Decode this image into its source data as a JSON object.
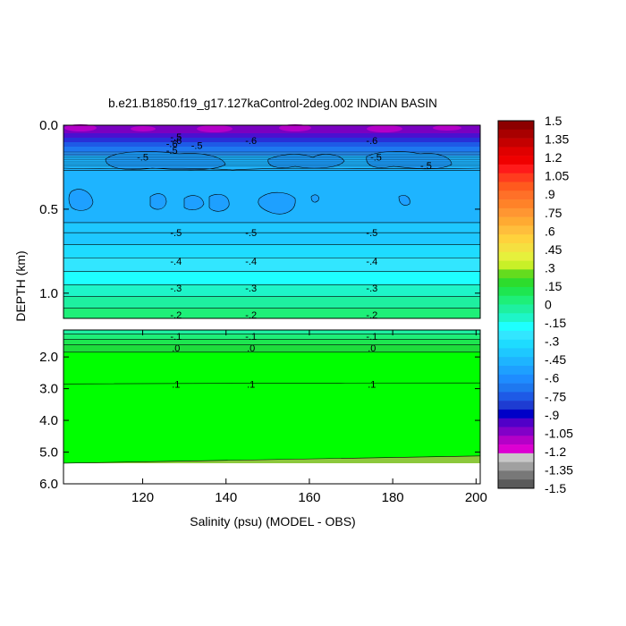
{
  "chart_data": {
    "type": "heatmap",
    "title": "b.e21.B1850.f19_g17.127kaControl-2deg.002 INDIAN BASIN",
    "xlabel": "Salinity (psu) (MODEL - OBS)",
    "ylabel": "DEPTH (km)",
    "x_ticks": [
      "120",
      "140",
      "160",
      "180",
      "200"
    ],
    "x_tick_values": [
      120,
      140,
      160,
      180,
      200
    ],
    "xlim": [
      101,
      201
    ],
    "upper_panel": {
      "ylim": [
        0.0,
        1.15
      ],
      "y_ticks": [
        "0.0",
        "0.5",
        "1.0"
      ],
      "y_tick_values": [
        0.0,
        0.5,
        1.0
      ]
    },
    "lower_panel": {
      "ylim": [
        1.15,
        6.0
      ],
      "y_ticks": [
        "2.0",
        "3.0",
        "4.0",
        "5.0",
        "6.0"
      ],
      "y_tick_values": [
        2.0,
        3.0,
        4.0,
        5.0,
        6.0
      ]
    },
    "contour_labels": [
      {
        "text": "-.5",
        "x": 128,
        "y": 0.07
      },
      {
        "text": "-.6",
        "x": 128,
        "y": 0.09
      },
      {
        "text": "-.6",
        "x": 146,
        "y": 0.09
      },
      {
        "text": "-.6",
        "x": 175,
        "y": 0.09
      },
      {
        "text": "-.5",
        "x": 133,
        "y": 0.12
      },
      {
        "text": "-.5",
        "x": 127,
        "y": 0.15
      },
      {
        "text": "-.6",
        "x": 127,
        "y": 0.11
      },
      {
        "text": "-.5",
        "x": 120,
        "y": 0.19
      },
      {
        "text": "-.5",
        "x": 176,
        "y": 0.19
      },
      {
        "text": "-.5",
        "x": 188,
        "y": 0.24
      },
      {
        "text": "-.5",
        "x": 128,
        "y": 0.64
      },
      {
        "text": "-.5",
        "x": 146,
        "y": 0.64
      },
      {
        "text": "-.5",
        "x": 175,
        "y": 0.64
      },
      {
        "text": "-.4",
        "x": 128,
        "y": 0.81
      },
      {
        "text": "-.4",
        "x": 146,
        "y": 0.81
      },
      {
        "text": "-.4",
        "x": 175,
        "y": 0.81
      },
      {
        "text": "-.3",
        "x": 128,
        "y": 0.97
      },
      {
        "text": "-.3",
        "x": 146,
        "y": 0.97
      },
      {
        "text": "-.3",
        "x": 175,
        "y": 0.97
      },
      {
        "text": "-.2",
        "x": 128,
        "y": 1.13
      },
      {
        "text": "-.2",
        "x": 146,
        "y": 1.13
      },
      {
        "text": "-.2",
        "x": 175,
        "y": 1.13
      },
      {
        "text": "-.1",
        "x": 128,
        "y": 1.35
      },
      {
        "text": "-.1",
        "x": 146,
        "y": 1.35
      },
      {
        "text": "-.1",
        "x": 175,
        "y": 1.35
      },
      {
        "text": ".0",
        "x": 128,
        "y": 1.72
      },
      {
        "text": ".0",
        "x": 146,
        "y": 1.72
      },
      {
        "text": ".0",
        "x": 175,
        "y": 1.72
      },
      {
        "text": ".1",
        "x": 128,
        "y": 2.85
      },
      {
        "text": ".1",
        "x": 146,
        "y": 2.85
      },
      {
        "text": ".1",
        "x": 175,
        "y": 2.85
      }
    ],
    "colorbar": {
      "levels": [
        "1.5",
        "1.35",
        "1.2",
        "1.05",
        ".9",
        ".75",
        ".6",
        ".45",
        ".3",
        ".15",
        "0",
        "-.15",
        "-.3",
        "-.45",
        "-.6",
        "-.75",
        "-.9",
        "-1.05",
        "-1.2",
        "-1.35",
        "-1.5"
      ],
      "level_values": [
        1.5,
        1.35,
        1.2,
        1.05,
        0.9,
        0.75,
        0.6,
        0.45,
        0.3,
        0.15,
        0,
        -0.15,
        -0.3,
        -0.45,
        -0.6,
        -0.75,
        -0.9,
        -1.05,
        -1.2,
        -1.35,
        -1.5
      ],
      "colors": [
        "#8c0000",
        "#a80000",
        "#c40000",
        "#e00000",
        "#f00000",
        "#ff1a1a",
        "#ff3c1e",
        "#ff5a1e",
        "#ff7028",
        "#ff8228",
        "#ff9632",
        "#ffaa32",
        "#ffbe3c",
        "#ffd23c",
        "#f5e040",
        "#e6f03c",
        "#c8f028",
        "#64dc1e",
        "#2ddc2d",
        "#1ee650",
        "#1eef78",
        "#1ef0a0",
        "#1ef5c8",
        "#1effff",
        "#32e6ff",
        "#1edcff",
        "#1ec8ff",
        "#1eb4ff",
        "#1ea0ff",
        "#1e8cff",
        "#1e78f0",
        "#1e5ae6",
        "#1e3cd2",
        "#0000c8",
        "#5000c8",
        "#8200c8",
        "#b400c8",
        "#dc00d2",
        "#c8c8c8",
        "#a0a0a0",
        "#787878",
        "#5a5a5a"
      ]
    },
    "fill_colors": {
      "surface_deep": "#7a00c0",
      "surface_mid": "#2830d8",
      "band_light": "#2a8ff0",
      "main": "#1eb4ff",
      "patch": "#1ea0ff",
      "band_050": "#1ec8ff",
      "band_045": "#1edcff",
      "band_040": "#32e6ff",
      "band_035": "#1effff",
      "band_030": "#1ef5c8",
      "band_025": "#1ef0a0",
      "band_020": "#1eef78",
      "band_015": "#1ee650",
      "green": "#00ff00",
      "bottom": "#8cc83c"
    }
  }
}
